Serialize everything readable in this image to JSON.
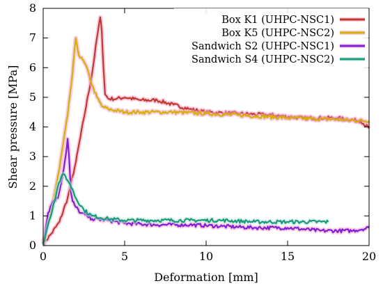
{
  "chart_data": {
    "type": "line",
    "title": "",
    "xlabel": "Deformation [mm]",
    "ylabel": "Shear pressure [MPa]",
    "xlim": [
      0,
      20
    ],
    "ylim": [
      0,
      8
    ],
    "xticks": [
      0,
      5,
      10,
      15,
      20
    ],
    "yticks": [
      0,
      1,
      2,
      3,
      4,
      5,
      6,
      7,
      8
    ],
    "grid": false,
    "legend_position": "top-right",
    "series": [
      {
        "name": "Box K1 (UHPC-NSC1)",
        "color": "#c0392b",
        "glow": "#f4a3c8",
        "x": [
          0,
          0.5,
          1.0,
          1.5,
          2.0,
          2.5,
          3.0,
          3.3,
          3.5,
          3.6,
          3.7,
          3.8,
          4.0,
          4.5,
          5.0,
          6.0,
          7.0,
          8.0,
          9.0,
          10.0,
          12.0,
          14.0,
          16.0,
          18.0,
          19.5,
          20.0
        ],
        "y": [
          0.05,
          0.4,
          0.8,
          1.6,
          2.8,
          4.3,
          5.8,
          7.0,
          7.7,
          7.2,
          6.0,
          5.1,
          4.95,
          4.95,
          5.0,
          4.9,
          4.9,
          4.75,
          4.6,
          4.5,
          4.45,
          4.4,
          4.3,
          4.3,
          4.2,
          3.95
        ]
      },
      {
        "name": "Box K5 (UHPC-NSC2)",
        "color": "#d4b106",
        "glow": "#f4a3c8",
        "x": [
          0,
          0.5,
          1.0,
          1.5,
          1.8,
          2.0,
          2.2,
          2.5,
          2.8,
          3.0,
          3.3,
          3.6,
          4.0,
          5.0,
          6.0,
          8.0,
          10.0,
          12.0,
          15.0,
          18.0,
          20.0
        ],
        "y": [
          0.1,
          1.2,
          2.6,
          4.4,
          5.8,
          7.0,
          6.4,
          6.2,
          5.8,
          5.4,
          5.0,
          4.7,
          4.6,
          4.5,
          4.5,
          4.5,
          4.45,
          4.4,
          4.3,
          4.25,
          4.2
        ]
      },
      {
        "name": "Sandwich S2 (UHPC-NSC1)",
        "color": "#7e1fd6",
        "glow": "#f4a3c8",
        "x": [
          0,
          0.3,
          0.6,
          0.9,
          1.2,
          1.4,
          1.5,
          1.6,
          1.7,
          1.8,
          2.0,
          2.3,
          2.7,
          3.0,
          4.0,
          5.0,
          7.0,
          9.0,
          11.0,
          13.0,
          15.0,
          17.0,
          19.0,
          20.0
        ],
        "y": [
          0.05,
          1.1,
          1.5,
          1.6,
          2.4,
          3.1,
          3.6,
          2.9,
          1.8,
          1.5,
          1.3,
          1.1,
          1.0,
          0.9,
          0.85,
          0.75,
          0.7,
          0.7,
          0.65,
          0.6,
          0.6,
          0.5,
          0.5,
          0.6
        ]
      },
      {
        "name": "Sandwich S4 (UHPC-NSC2)",
        "color": "#1a9a7a",
        "glow": "#b8e6d8",
        "x": [
          0,
          0.3,
          0.6,
          0.9,
          1.1,
          1.3,
          1.5,
          1.8,
          2.0,
          2.5,
          3.0,
          4.0,
          5.0,
          7.0,
          9.0,
          11.0,
          13.0,
          15.0,
          17.5
        ],
        "y": [
          0.05,
          0.7,
          1.3,
          2.0,
          2.3,
          2.4,
          2.2,
          1.9,
          1.6,
          1.2,
          1.0,
          0.9,
          0.85,
          0.85,
          0.85,
          0.85,
          0.8,
          0.8,
          0.8
        ]
      }
    ]
  }
}
